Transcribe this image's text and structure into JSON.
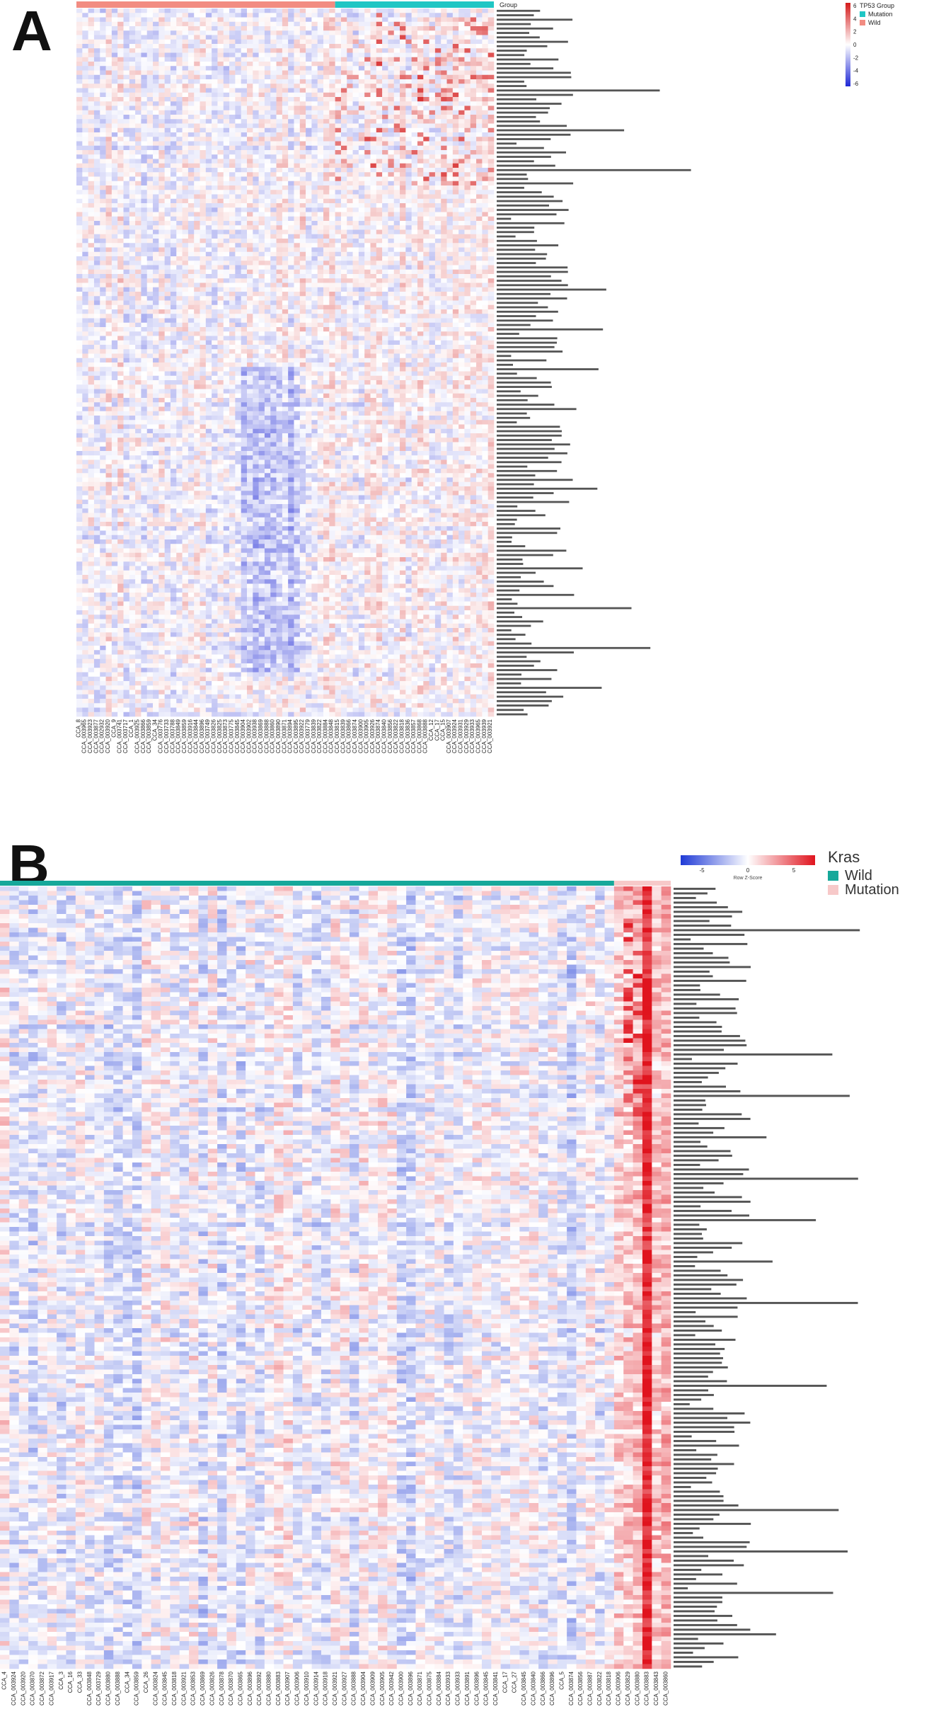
{
  "panels": [
    {
      "letter": "A",
      "legend_title": "TP53 Group",
      "group_legend_title": "Group",
      "group_legend": [
        {
          "label": "Mutation",
          "color": "#20c6c4"
        },
        {
          "label": "Wild",
          "color": "#f28c82"
        }
      ],
      "color_key": {
        "ticks": [
          "6",
          "4",
          "2",
          "0",
          "-2",
          "-4",
          "-6"
        ],
        "colors": [
          "#d41a1a",
          "#ffffff",
          "#1f28d6"
        ]
      }
    },
    {
      "letter": "B",
      "color_key": {
        "ticks": [
          "-5",
          "0",
          "5"
        ],
        "label": "Row Z-Score",
        "colors": [
          "#1f3ad6",
          "#ffffff",
          "#e0141e"
        ]
      },
      "group_legend_title": "Kras",
      "group_legend": [
        {
          "label": "Wild",
          "color": "#16a89a"
        },
        {
          "label": "Mutation",
          "color": "#f7c9c9"
        }
      ]
    }
  ],
  "chart_data": [
    {
      "type": "heatmap",
      "title": "",
      "annotation_track": "TP53 Group",
      "groups": {
        "Wild": 44,
        "Mutation": 27
      },
      "n_columns": 71,
      "n_rows": 160,
      "value_range": [
        -6,
        6
      ],
      "colormap": [
        "#1f28d6",
        "#ffffff",
        "#d41a1a"
      ],
      "column_labels": [
        "CCA_8",
        "CCA_003965",
        "CCA_003923",
        "CCA_003877",
        "CCA_002932",
        "CCA_003920",
        "CCA_9",
        "CCA_003741",
        "CCA_003717",
        "CCA_1",
        "CCA_003925",
        "CCA_003866",
        "CCA_003859",
        "CCA_34",
        "CCA_003776",
        "CCA_003733",
        "CCA_003788",
        "CCA_003849",
        "CCA_003859",
        "CCA_003916",
        "CCA_003844",
        "CCA_003896",
        "CCA_003749",
        "CCA_003826",
        "CCA_003825",
        "CCA_003873",
        "CCA_003775",
        "CCA_003845",
        "CCA_003904",
        "CCA_003902",
        "CCA_003938",
        "CCA_003869",
        "CCA_003888",
        "CCA_003860",
        "CCA_003890",
        "CCA_003871",
        "CCA_003894",
        "CCA_003895",
        "CCA_003922",
        "CCA_003779",
        "CCA_003839",
        "CCA_003822",
        "CCA_003884",
        "CCA_003848",
        "CCA_003815",
        "CCA_003839",
        "CCA_003866",
        "CCA_003874",
        "CCA_003900",
        "CCA_003905",
        "CCA_003926",
        "CCA_003874",
        "CCA_003840",
        "CCA_003856",
        "CCA_003822",
        "CCA_003818",
        "CCA_003836",
        "CCA_003857",
        "CCA_003868",
        "CCA_003888",
        "CCA_12",
        "CCA_17",
        "CCA_15",
        "CCA_003907",
        "CCA_003924",
        "CCA_003931",
        "CCA_003929",
        "CCA_003933",
        "CCA_003965",
        "CCA_003939",
        "CCA_003921"
      ]
    },
    {
      "type": "heatmap",
      "title": "",
      "annotation_track": "Kras",
      "groups": {
        "Wild": 65,
        "Mutation": 6
      },
      "n_columns": 71,
      "n_rows": 170,
      "value_range": [
        -5,
        5
      ],
      "colormap": [
        "#1f3ad6",
        "#ffffff",
        "#e0141e"
      ],
      "column_labels": [
        "CCA_4",
        "CCA_003924",
        "CCA_003920",
        "CCA_003870",
        "CCA_003872",
        "CCA_003917",
        "CCA_3",
        "CCA_16",
        "CCA_33",
        "CCA_003848",
        "CCA_003729",
        "CCA_003880",
        "CCA_003888",
        "CCA_34",
        "CCA_003859",
        "CCA_26",
        "CCA_003824",
        "CCA_003845",
        "CCA_003818",
        "CCA_003921",
        "CCA_003853",
        "CCA_003869",
        "CCA_003826",
        "CCA_003878",
        "CCA_003870",
        "CCA_003865",
        "CCA_003896",
        "CCA_003892",
        "CCA_003880",
        "CCA_003883",
        "CCA_003907",
        "CCA_003906",
        "CCA_003910",
        "CCA_003914",
        "CCA_003918",
        "CCA_003921",
        "CCA_003927",
        "CCA_003888",
        "CCA_003904",
        "CCA_003909",
        "CCA_003905",
        "CCA_003942",
        "CCA_003900",
        "CCA_003896",
        "CCA_003871",
        "CCA_003875",
        "CCA_003884",
        "CCA_003933",
        "CCA_003933",
        "CCA_003891",
        "CCA_003896",
        "CCA_003845",
        "CCA_003841",
        "CCA_17",
        "CCA_27",
        "CCA_003845",
        "CCA_003840",
        "CCA_003866",
        "CCA_003896",
        "CCA_5",
        "CCA_003874",
        "CCA_003856",
        "CCA_003887",
        "CCA_003822",
        "CCA_003818",
        "CCA_003906",
        "CCA_003829",
        "CCA_003880",
        "CCA_003883",
        "CCA_003843",
        "CCA_003860"
      ]
    }
  ]
}
